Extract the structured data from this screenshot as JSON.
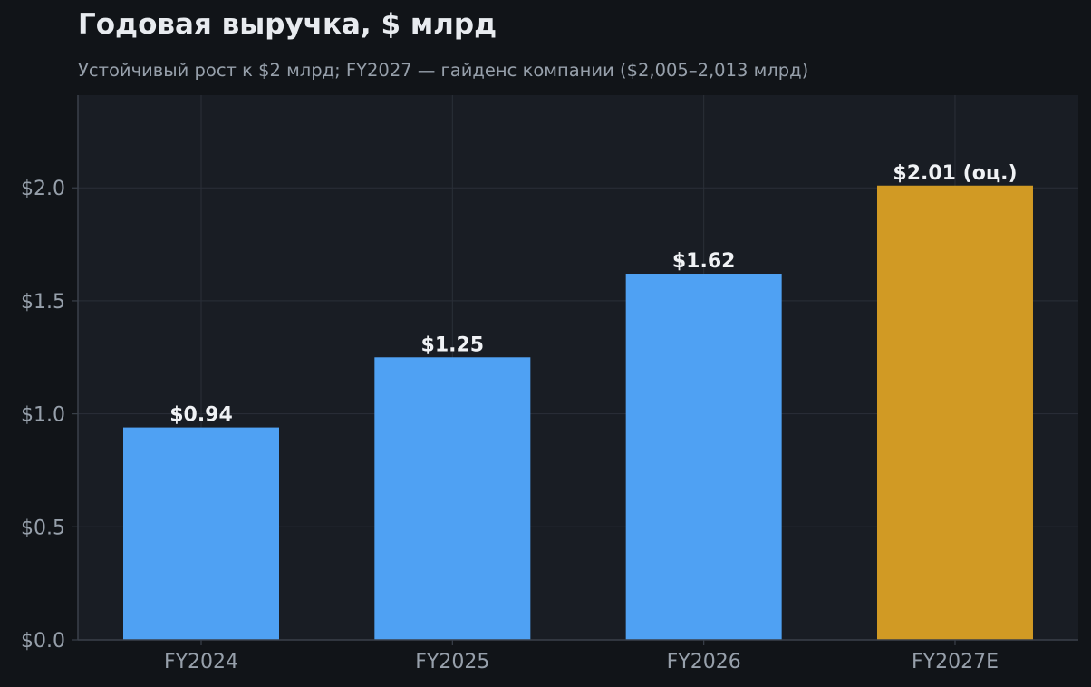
{
  "chart_data": {
    "type": "bar",
    "title": "Годовая выручка, $ млрд",
    "subtitle": "Устойчивый рост к $2 млрд; FY2027 — гайденс компании ($2,005–2,013 млрд)",
    "categories": [
      "FY2024",
      "FY2025",
      "FY2026",
      "FY2027E"
    ],
    "values": [
      0.94,
      1.25,
      1.62,
      2.01
    ],
    "data_labels": [
      "$0.94",
      "$1.25",
      "$1.62",
      "$2.01 (оц.)"
    ],
    "bar_colors": [
      "#4fa1f3",
      "#4fa1f3",
      "#4fa1f3",
      "#d19a24"
    ],
    "yticks": [
      0.0,
      0.5,
      1.0,
      1.5,
      2.0
    ],
    "ytick_labels": [
      "$0.0",
      "$0.5",
      "$1.0",
      "$1.5",
      "$2.0"
    ],
    "ylim": [
      0,
      2.41
    ],
    "xlabel": "",
    "ylabel": "",
    "grid": true,
    "colors": {
      "background": "#111418",
      "plot_background": "#191d24",
      "grid": "#2a2f38",
      "axis": "#3a404a",
      "tick_label": "#97a0ab",
      "data_label": "#f0f2f5"
    }
  }
}
